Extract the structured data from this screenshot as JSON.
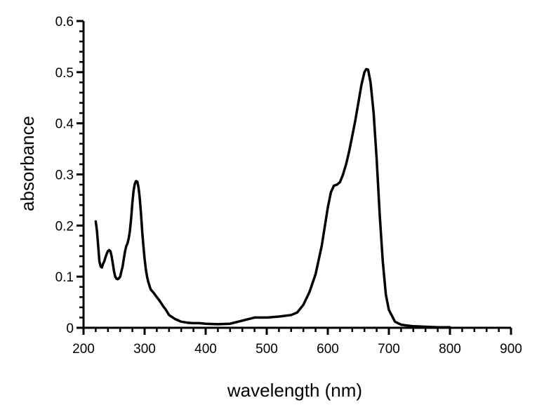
{
  "chart_data": {
    "type": "line",
    "title": "",
    "xlabel": "wavelength (nm)",
    "ylabel": "absorbance",
    "xlim": [
      200,
      900
    ],
    "ylim": [
      0,
      0.6
    ],
    "x_ticks": [
      200,
      300,
      400,
      500,
      600,
      700,
      800,
      900
    ],
    "x_tick_labels": [
      "200",
      "300",
      "400",
      "500",
      "600",
      "700",
      "800",
      "900"
    ],
    "y_ticks": [
      0,
      0.1,
      0.2,
      0.3,
      0.4,
      0.5,
      0.6
    ],
    "y_tick_labels": [
      "0",
      "0.1",
      "0.2",
      "0.3",
      "0.4",
      "0.5",
      "0.6"
    ],
    "grid": false,
    "legend": "none",
    "line_color": "#000000",
    "series": [
      {
        "x": [
          220,
          222,
          224,
          226,
          228,
          230,
          232,
          234,
          236,
          238,
          240,
          242,
          244,
          246,
          248,
          250,
          252,
          254,
          256,
          258,
          260,
          262,
          264,
          266,
          268,
          270,
          272,
          274,
          276,
          278,
          280,
          282,
          284,
          286,
          288,
          290,
          292,
          294,
          296,
          298,
          300,
          302,
          304,
          306,
          308,
          310,
          315,
          320,
          325,
          330,
          335,
          340,
          350,
          360,
          370,
          380,
          390,
          400,
          420,
          440,
          460,
          480,
          500,
          520,
          540,
          550,
          560,
          570,
          580,
          590,
          600,
          605,
          610,
          615,
          620,
          625,
          630,
          635,
          640,
          645,
          650,
          655,
          660,
          663,
          666,
          670,
          675,
          680,
          685,
          690,
          695,
          700,
          710,
          720,
          740,
          760,
          780,
          800
        ],
        "y": [
          0.208,
          0.19,
          0.16,
          0.13,
          0.12,
          0.118,
          0.125,
          0.13,
          0.138,
          0.145,
          0.15,
          0.152,
          0.15,
          0.14,
          0.125,
          0.11,
          0.1,
          0.096,
          0.095,
          0.097,
          0.1,
          0.11,
          0.12,
          0.135,
          0.15,
          0.16,
          0.165,
          0.175,
          0.19,
          0.215,
          0.245,
          0.268,
          0.282,
          0.287,
          0.286,
          0.275,
          0.255,
          0.225,
          0.19,
          0.16,
          0.135,
          0.115,
          0.1,
          0.09,
          0.082,
          0.075,
          0.068,
          0.06,
          0.052,
          0.043,
          0.035,
          0.025,
          0.017,
          0.012,
          0.01,
          0.009,
          0.009,
          0.008,
          0.007,
          0.008,
          0.014,
          0.02,
          0.02,
          0.022,
          0.025,
          0.03,
          0.045,
          0.07,
          0.105,
          0.16,
          0.235,
          0.265,
          0.278,
          0.28,
          0.285,
          0.3,
          0.32,
          0.345,
          0.375,
          0.405,
          0.44,
          0.475,
          0.5,
          0.506,
          0.505,
          0.48,
          0.42,
          0.33,
          0.22,
          0.13,
          0.065,
          0.035,
          0.012,
          0.006,
          0.003,
          0.002,
          0.001,
          0.001
        ]
      }
    ]
  }
}
